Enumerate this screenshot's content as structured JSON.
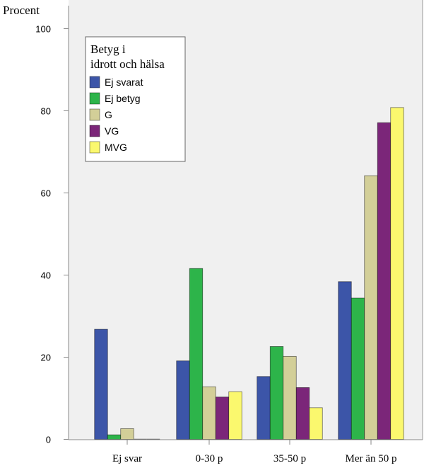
{
  "chart_data": {
    "type": "bar",
    "title": "",
    "xlabel": "",
    "ylabel": "Procent",
    "ylim": [
      0,
      100
    ],
    "yticks": [
      0,
      20,
      40,
      60,
      80,
      100
    ],
    "grid": false,
    "legend_title": [
      "Betyg i",
      "idrott och hälsa"
    ],
    "legend_position": "top-left",
    "categories": [
      "Ej svar",
      "0-30 p",
      "35-50 p",
      "Mer än 50 p"
    ],
    "series": [
      {
        "name": "Ej svarat",
        "color": "#3c55a8",
        "values": [
          26.8,
          19.1,
          15.3,
          38.4
        ]
      },
      {
        "name": "Ej betyg",
        "color": "#2db44a",
        "values": [
          1.1,
          41.6,
          22.6,
          34.4
        ]
      },
      {
        "name": "G",
        "color": "#d3cf98",
        "values": [
          2.6,
          12.8,
          20.2,
          64.2
        ]
      },
      {
        "name": "VG",
        "color": "#7b2679",
        "values": [
          0,
          10.3,
          12.6,
          77.1
        ]
      },
      {
        "name": "MVG",
        "color": "#fbf86e",
        "values": [
          0,
          11.6,
          7.7,
          80.8
        ]
      }
    ]
  }
}
